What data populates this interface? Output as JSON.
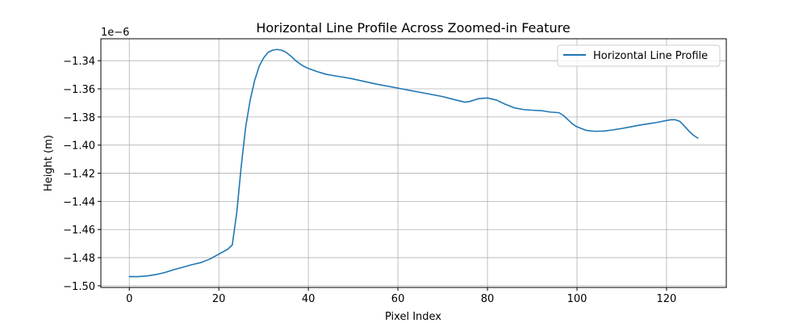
{
  "chart_data": {
    "type": "line",
    "title": "Horizontal Line Profile Across Zoomed-in Feature",
    "xlabel": "Pixel Index",
    "ylabel": "Height (m)",
    "y_offset_text": "1e−6",
    "xlim": [
      -6.35,
      133.35
    ],
    "ylim": [
      -1.5012,
      -1.3244
    ],
    "x_ticks": [
      0,
      20,
      40,
      60,
      80,
      100,
      120
    ],
    "y_ticks": [
      -1.5,
      -1.48,
      -1.46,
      -1.44,
      -1.42,
      -1.4,
      -1.38,
      -1.36,
      -1.34
    ],
    "y_tick_labels": [
      "−1.50",
      "−1.48",
      "−1.46",
      "−1.44",
      "−1.42",
      "−1.40",
      "−1.38",
      "−1.36",
      "−1.34"
    ],
    "grid": true,
    "legend_position": "top-right",
    "series": [
      {
        "name": "Horizontal Line Profile",
        "color": "#1f77b4",
        "x": [
          0,
          2,
          4,
          6,
          8,
          10,
          12,
          14,
          16,
          18,
          20,
          22,
          23,
          24,
          25,
          26,
          27,
          28,
          29,
          30,
          31,
          32,
          33,
          34,
          35,
          36,
          37,
          38,
          39,
          40,
          42,
          44,
          46,
          48,
          50,
          55,
          60,
          65,
          70,
          73,
          75,
          76,
          78,
          80,
          82,
          84,
          86,
          88,
          90,
          92,
          94,
          96,
          97,
          98,
          99,
          100,
          102,
          104,
          106,
          108,
          110,
          112,
          114,
          116,
          118,
          120,
          121,
          122,
          123,
          124,
          125,
          126,
          127
        ],
        "values": [
          -1.4935,
          -1.4935,
          -1.493,
          -1.492,
          -1.4905,
          -1.4885,
          -1.4868,
          -1.485,
          -1.4835,
          -1.481,
          -1.4775,
          -1.474,
          -1.471,
          -1.448,
          -1.415,
          -1.387,
          -1.368,
          -1.354,
          -1.344,
          -1.338,
          -1.334,
          -1.3325,
          -1.332,
          -1.3325,
          -1.334,
          -1.3365,
          -1.3395,
          -1.342,
          -1.344,
          -1.3455,
          -1.3478,
          -1.3497,
          -1.3508,
          -1.3518,
          -1.353,
          -1.3565,
          -1.3595,
          -1.3625,
          -1.3655,
          -1.368,
          -1.3695,
          -1.369,
          -1.367,
          -1.3665,
          -1.368,
          -1.371,
          -1.3735,
          -1.3747,
          -1.3752,
          -1.3755,
          -1.3765,
          -1.377,
          -1.379,
          -1.382,
          -1.385,
          -1.387,
          -1.3895,
          -1.3902,
          -1.39,
          -1.3892,
          -1.3882,
          -1.387,
          -1.3858,
          -1.3848,
          -1.3838,
          -1.3825,
          -1.382,
          -1.382,
          -1.3832,
          -1.3865,
          -1.39,
          -1.393,
          -1.395
        ]
      }
    ]
  }
}
